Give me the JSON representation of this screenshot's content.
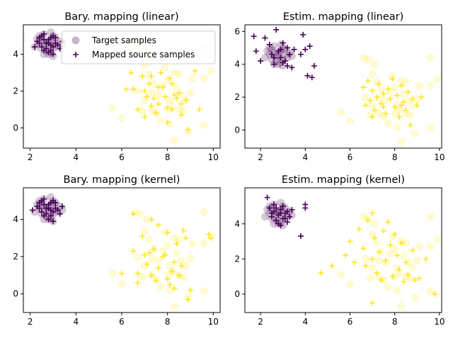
{
  "colors": {
    "class0": "#440154",
    "class1": "#fde725"
  },
  "target_samples": {
    "class0": [
      [
        2.8,
        4.5
      ],
      [
        2.6,
        4.7
      ],
      [
        3.0,
        4.3
      ],
      [
        2.5,
        4.9
      ],
      [
        2.9,
        4.8
      ],
      [
        3.1,
        4.6
      ],
      [
        2.7,
        4.2
      ],
      [
        2.4,
        4.6
      ],
      [
        3.2,
        4.4
      ],
      [
        2.8,
        4.0
      ],
      [
        2.6,
        5.1
      ],
      [
        3.0,
        5.0
      ],
      [
        2.3,
        4.8
      ],
      [
        2.9,
        4.1
      ],
      [
        3.3,
        4.7
      ],
      [
        2.7,
        4.5
      ],
      [
        2.2,
        4.4
      ],
      [
        3.1,
        4.9
      ],
      [
        2.5,
        4.3
      ],
      [
        2.8,
        4.7
      ],
      [
        3.0,
        3.9
      ],
      [
        2.6,
        4.0
      ],
      [
        3.4,
        4.5
      ],
      [
        2.4,
        5.0
      ],
      [
        2.9,
        5.2
      ]
    ],
    "class1": [
      [
        5.6,
        1.1
      ],
      [
        6.0,
        0.55
      ],
      [
        6.8,
        4.3
      ],
      [
        7.0,
        3.4
      ],
      [
        7.2,
        2.9
      ],
      [
        6.7,
        2.0
      ],
      [
        7.0,
        1.5
      ],
      [
        7.3,
        1.0
      ],
      [
        6.9,
        0.9
      ],
      [
        7.5,
        0.8
      ],
      [
        7.6,
        1.8
      ],
      [
        7.8,
        2.3
      ],
      [
        8.0,
        2.6
      ],
      [
        8.3,
        3.0
      ],
      [
        8.5,
        2.9
      ],
      [
        8.4,
        2.2
      ],
      [
        8.6,
        1.8
      ],
      [
        8.8,
        1.5
      ],
      [
        8.2,
        1.2
      ],
      [
        8.0,
        1.0
      ],
      [
        7.7,
        0.4
      ],
      [
        8.1,
        0.2
      ],
      [
        8.3,
        -0.7
      ],
      [
        8.9,
        -0.2
      ],
      [
        9.1,
        2.7
      ],
      [
        9.6,
        4.4
      ],
      [
        9.6,
        2.7
      ],
      [
        9.9,
        3.1
      ],
      [
        9.6,
        0.15
      ],
      [
        8.7,
        0.9
      ],
      [
        7.4,
        2.4
      ],
      [
        7.1,
        4.0
      ],
      [
        6.6,
        4.4
      ],
      [
        7.9,
        3.3
      ],
      [
        8.5,
        1.0
      ],
      [
        9.0,
        1.9
      ],
      [
        7.3,
        1.9
      ],
      [
        8.1,
        1.5
      ]
    ]
  },
  "chart_data": [
    {
      "type": "scatter",
      "title": "Bary. mapping (linear)",
      "xlim": [
        1.7,
        10.3
      ],
      "ylim": [
        -1.1,
        5.6
      ],
      "xticks": [
        2,
        4,
        6,
        8,
        10
      ],
      "yticks": [
        0,
        2,
        4
      ],
      "legend": {
        "placement": "upper-right",
        "entries": [
          "Target samples",
          "Mapped source samples"
        ]
      },
      "mapped_source": {
        "class0": [
          [
            2.8,
            4.6
          ],
          [
            2.6,
            4.8
          ],
          [
            3.0,
            4.4
          ],
          [
            2.5,
            5.0
          ],
          [
            2.9,
            4.9
          ],
          [
            3.1,
            4.6
          ],
          [
            2.7,
            4.3
          ],
          [
            2.4,
            4.6
          ],
          [
            3.2,
            4.5
          ],
          [
            2.8,
            4.1
          ],
          [
            2.6,
            5.1
          ],
          [
            3.0,
            5.0
          ],
          [
            2.2,
            4.4
          ],
          [
            2.9,
            4.2
          ],
          [
            3.4,
            4.7
          ],
          [
            2.7,
            4.6
          ],
          [
            2.3,
            4.7
          ],
          [
            3.1,
            4.9
          ],
          [
            2.5,
            4.4
          ],
          [
            2.8,
            4.8
          ],
          [
            3.0,
            4.0
          ],
          [
            2.6,
            4.2
          ],
          [
            3.3,
            4.3
          ],
          [
            2.4,
            4.9
          ],
          [
            2.9,
            4.5
          ]
        ],
        "class1": [
          [
            6.4,
            3.0
          ],
          [
            6.5,
            2.1
          ],
          [
            6.9,
            2.8
          ],
          [
            6.7,
            1.0
          ],
          [
            7.0,
            2.0
          ],
          [
            7.1,
            1.7
          ],
          [
            7.2,
            2.4
          ],
          [
            7.3,
            2.8
          ],
          [
            7.3,
            1.2
          ],
          [
            7.5,
            0.8
          ],
          [
            7.6,
            1.3
          ],
          [
            7.6,
            2.2
          ],
          [
            7.7,
            3.0
          ],
          [
            7.8,
            2.2
          ],
          [
            7.9,
            1.7
          ],
          [
            8.0,
            1.1
          ],
          [
            8.0,
            0.3
          ],
          [
            8.1,
            2.7
          ],
          [
            8.2,
            2.4
          ],
          [
            8.2,
            1.0
          ],
          [
            8.3,
            1.8
          ],
          [
            8.4,
            1.6
          ],
          [
            8.5,
            1.9
          ],
          [
            8.6,
            1.3
          ],
          [
            8.6,
            0.7
          ],
          [
            8.8,
            1.5
          ],
          [
            8.9,
            -0.1
          ],
          [
            9.2,
            3.1
          ],
          [
            9.4,
            1.0
          ],
          [
            6.2,
            2.1
          ],
          [
            7.0,
            0.6
          ],
          [
            7.4,
            1.6
          ]
        ]
      }
    },
    {
      "type": "scatter",
      "title": "Estim. mapping (linear)",
      "xlim": [
        1.3,
        10.1
      ],
      "ylim": [
        -1.1,
        6.4
      ],
      "xticks": [
        2,
        4,
        6,
        8,
        10
      ],
      "yticks": [
        0,
        2,
        4,
        6
      ],
      "mapped_source": {
        "class0": [
          [
            1.7,
            5.7
          ],
          [
            1.8,
            4.8
          ],
          [
            2.0,
            4.2
          ],
          [
            2.2,
            5.6
          ],
          [
            2.4,
            5.2
          ],
          [
            2.5,
            4.6
          ],
          [
            2.6,
            4.0
          ],
          [
            2.7,
            6.1
          ],
          [
            2.8,
            4.8
          ],
          [
            2.9,
            4.4
          ],
          [
            3.0,
            5.3
          ],
          [
            3.1,
            4.2
          ],
          [
            3.2,
            5.0
          ],
          [
            3.3,
            4.6
          ],
          [
            3.4,
            3.8
          ],
          [
            3.5,
            4.9
          ],
          [
            3.8,
            4.6
          ],
          [
            3.9,
            5.8
          ],
          [
            4.0,
            4.9
          ],
          [
            4.1,
            3.3
          ],
          [
            4.3,
            3.2
          ],
          [
            4.2,
            5.1
          ],
          [
            4.4,
            3.9
          ],
          [
            2.6,
            4.4
          ],
          [
            2.9,
            4.9
          ],
          [
            3.0,
            4.1
          ],
          [
            3.2,
            3.9
          ]
        ],
        "class1": [
          [
            6.6,
            2.6
          ],
          [
            6.7,
            1.5
          ],
          [
            6.8,
            3.0
          ],
          [
            6.9,
            1.8
          ],
          [
            7.0,
            2.4
          ],
          [
            7.1,
            1.2
          ],
          [
            7.2,
            2.0
          ],
          [
            7.3,
            2.8
          ],
          [
            7.4,
            1.6
          ],
          [
            7.5,
            2.2
          ],
          [
            7.6,
            1.0
          ],
          [
            7.7,
            2.5
          ],
          [
            7.8,
            1.9
          ],
          [
            7.9,
            3.1
          ],
          [
            8.0,
            1.4
          ],
          [
            8.1,
            2.1
          ],
          [
            8.2,
            0.8
          ],
          [
            8.3,
            2.7
          ],
          [
            8.4,
            1.7
          ],
          [
            8.5,
            1.2
          ],
          [
            8.6,
            2.3
          ],
          [
            8.7,
            0.3
          ],
          [
            8.8,
            1.9
          ],
          [
            9.0,
            1.5
          ],
          [
            9.2,
            2.0
          ],
          [
            7.0,
            0.8
          ],
          [
            8.3,
            1.5
          ],
          [
            7.5,
            1.4
          ]
        ]
      }
    },
    {
      "type": "scatter",
      "title": "Bary. mapping (kernel)",
      "xlim": [
        1.7,
        10.3
      ],
      "ylim": [
        -1.0,
        5.7
      ],
      "xticks": [
        2,
        4,
        6,
        8,
        10
      ],
      "yticks": [
        0,
        2,
        4
      ],
      "mapped_source": {
        "class0": [
          [
            2.8,
            4.6
          ],
          [
            2.6,
            4.8
          ],
          [
            3.0,
            4.4
          ],
          [
            2.5,
            5.0
          ],
          [
            2.9,
            4.9
          ],
          [
            3.1,
            4.6
          ],
          [
            2.7,
            4.3
          ],
          [
            2.4,
            4.6
          ],
          [
            3.2,
            4.5
          ],
          [
            2.8,
            4.0
          ],
          [
            2.6,
            5.1
          ],
          [
            3.0,
            5.0
          ],
          [
            2.1,
            4.5
          ],
          [
            2.9,
            4.2
          ],
          [
            3.4,
            4.7
          ],
          [
            2.7,
            4.6
          ],
          [
            2.3,
            4.7
          ],
          [
            3.1,
            4.9
          ],
          [
            2.5,
            4.4
          ],
          [
            2.8,
            4.8
          ],
          [
            3.0,
            3.9
          ],
          [
            2.6,
            4.2
          ],
          [
            3.3,
            4.3
          ],
          [
            2.4,
            4.9
          ],
          [
            2.9,
            4.5
          ]
        ],
        "class1": [
          [
            6.5,
            4.3
          ],
          [
            6.5,
            2.3
          ],
          [
            6.9,
            3.1
          ],
          [
            6.7,
            1.1
          ],
          [
            7.0,
            2.1
          ],
          [
            7.1,
            1.6
          ],
          [
            7.2,
            2.2
          ],
          [
            7.3,
            4.0
          ],
          [
            7.3,
            1.0
          ],
          [
            7.5,
            0.7
          ],
          [
            7.6,
            1.4
          ],
          [
            7.6,
            3.7
          ],
          [
            7.8,
            2.0
          ],
          [
            7.9,
            2.1
          ],
          [
            8.0,
            0.8
          ],
          [
            8.1,
            0.5
          ],
          [
            8.0,
            3.3
          ],
          [
            8.2,
            1.2
          ],
          [
            8.3,
            1.7
          ],
          [
            8.4,
            2.7
          ],
          [
            8.5,
            1.0
          ],
          [
            8.6,
            1.5
          ],
          [
            8.7,
            3.4
          ],
          [
            8.8,
            3.0
          ],
          [
            8.9,
            -0.3
          ],
          [
            9.0,
            0.2
          ],
          [
            9.8,
            3.2
          ],
          [
            9.9,
            3.0
          ],
          [
            6.0,
            1.1
          ],
          [
            6.7,
            0.6
          ],
          [
            7.4,
            2.4
          ],
          [
            8.3,
            0.3
          ]
        ]
      }
    },
    {
      "type": "scatter",
      "title": "Estim. mapping (kernel)",
      "xlim": [
        1.3,
        10.1
      ],
      "ylim": [
        -1.05,
        6.05
      ],
      "xticks": [
        2,
        4,
        6,
        8,
        10
      ],
      "yticks": [
        0,
        2,
        4
      ],
      "mapped_source": {
        "class0": [
          [
            2.3,
            5.5
          ],
          [
            2.4,
            4.9
          ],
          [
            2.5,
            4.4
          ],
          [
            2.6,
            4.7
          ],
          [
            2.7,
            4.2
          ],
          [
            2.8,
            4.5
          ],
          [
            2.8,
            4.0
          ],
          [
            2.9,
            4.8
          ],
          [
            3.0,
            4.3
          ],
          [
            3.0,
            5.0
          ],
          [
            3.1,
            4.6
          ],
          [
            3.2,
            4.1
          ],
          [
            3.3,
            4.4
          ],
          [
            3.4,
            4.8
          ],
          [
            2.6,
            5.1
          ],
          [
            2.9,
            4.6
          ],
          [
            3.1,
            4.3
          ],
          [
            2.7,
            4.9
          ],
          [
            2.5,
            4.6
          ],
          [
            3.8,
            3.3
          ],
          [
            4.0,
            4.9
          ],
          [
            4.0,
            5.1
          ],
          [
            3.2,
            4.7
          ],
          [
            2.9,
            3.9
          ]
        ],
        "class1": [
          [
            4.7,
            1.2
          ],
          [
            5.2,
            1.6
          ],
          [
            5.8,
            2.2
          ],
          [
            6.0,
            3.0
          ],
          [
            6.2,
            1.8
          ],
          [
            6.4,
            3.7
          ],
          [
            6.6,
            2.6
          ],
          [
            6.7,
            1.6
          ],
          [
            6.8,
            4.2
          ],
          [
            7.0,
            2.0
          ],
          [
            7.0,
            -0.5
          ],
          [
            7.1,
            3.2
          ],
          [
            7.2,
            1.2
          ],
          [
            7.3,
            2.4
          ],
          [
            7.4,
            0.8
          ],
          [
            7.5,
            3.6
          ],
          [
            7.6,
            1.9
          ],
          [
            7.8,
            2.8
          ],
          [
            7.9,
            1.0
          ],
          [
            8.0,
            3.4
          ],
          [
            8.1,
            2.2
          ],
          [
            8.2,
            1.4
          ],
          [
            8.3,
            2.9
          ],
          [
            8.4,
            0.7
          ],
          [
            8.5,
            1.8
          ],
          [
            8.6,
            1.1
          ],
          [
            8.8,
            2.5
          ],
          [
            8.9,
            0.8
          ],
          [
            9.1,
            0.9
          ],
          [
            9.4,
            2.0
          ],
          [
            9.8,
            0.0
          ],
          [
            7.0,
            4.6
          ],
          [
            7.7,
            4.1
          ]
        ]
      }
    }
  ]
}
